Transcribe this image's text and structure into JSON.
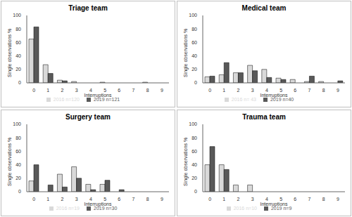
{
  "chart_data": [
    {
      "type": "bar",
      "title": "Triage team",
      "x_label": "Interruptions",
      "y_label": "Single observations %",
      "categories": [
        0,
        1,
        2,
        3,
        4,
        5,
        6,
        7,
        8,
        9
      ],
      "ylim": [
        0,
        100
      ],
      "yticks": [
        0,
        20,
        40,
        60,
        80,
        100
      ],
      "grid": false,
      "legend": "bottom",
      "series": [
        {
          "name": "2016 n=120",
          "color": "#d9d9d9",
          "values": [
            65,
            27,
            4,
            2,
            0,
            1,
            0,
            0,
            1,
            0
          ]
        },
        {
          "name": "2019 n=121",
          "color": "#595959",
          "values": [
            83,
            14,
            3,
            0,
            0,
            0,
            0,
            0,
            0,
            0
          ]
        }
      ]
    },
    {
      "type": "bar",
      "title": "Medical team",
      "x_label": "Interruptions",
      "y_label": "Single observations %",
      "categories": [
        0,
        1,
        2,
        3,
        4,
        5,
        6,
        7,
        8,
        9
      ],
      "ylim": [
        0,
        100
      ],
      "yticks": [
        0,
        20,
        40,
        60,
        80,
        100
      ],
      "grid": false,
      "legend": "bottom",
      "series": [
        {
          "name": "2016 n= 43",
          "color": "#d9d9d9",
          "values": [
            9,
            12,
            15,
            26,
            20,
            7,
            5,
            2,
            2,
            0
          ]
        },
        {
          "name": "2019 n=40",
          "color": "#595959",
          "values": [
            10,
            30,
            15,
            18,
            8,
            5,
            0,
            10,
            0,
            3
          ]
        }
      ]
    },
    {
      "type": "bar",
      "title": "Surgery team",
      "x_label": "Interruptions",
      "y_label": "Single observations %",
      "categories": [
        0,
        1,
        2,
        3,
        4,
        5,
        6,
        7,
        8,
        9
      ],
      "ylim": [
        0,
        100
      ],
      "yticks": [
        0,
        20,
        40,
        60,
        80,
        100
      ],
      "grid": false,
      "legend": "bottom",
      "series": [
        {
          "name": "2016 n=19",
          "color": "#d9d9d9",
          "values": [
            16,
            0,
            26,
            37,
            11,
            11,
            0,
            0,
            0,
            0
          ]
        },
        {
          "name": "2019 n=30",
          "color": "#595959",
          "values": [
            40,
            10,
            7,
            20,
            3,
            17,
            3,
            0,
            0,
            0
          ]
        }
      ]
    },
    {
      "type": "bar",
      "title": "Trauma team",
      "x_label": "Interruptions",
      "y_label": "Single observations %",
      "categories": [
        0,
        1,
        2,
        3,
        4,
        5,
        6,
        7,
        8,
        9
      ],
      "ylim": [
        0,
        100
      ],
      "yticks": [
        0,
        20,
        40,
        60,
        80,
        100
      ],
      "grid": false,
      "legend": "bottom",
      "series": [
        {
          "name": "2016 n=10",
          "color": "#d9d9d9",
          "values": [
            40,
            40,
            10,
            10,
            0,
            0,
            0,
            0,
            0,
            0
          ]
        },
        {
          "name": "2019 n=9",
          "color": "#595959",
          "values": [
            67,
            33,
            0,
            0,
            0,
            0,
            0,
            0,
            0,
            0
          ]
        }
      ]
    }
  ]
}
